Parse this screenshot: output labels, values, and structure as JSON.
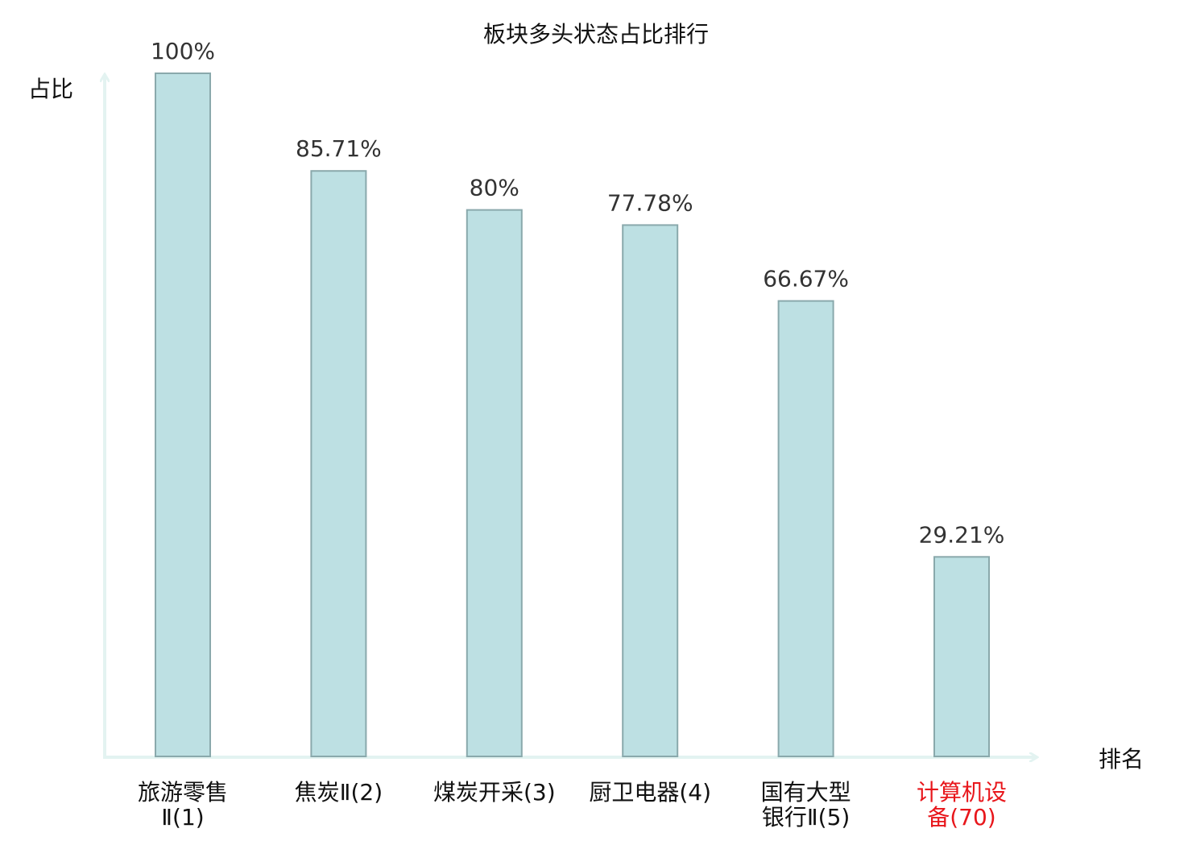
{
  "chart_data": {
    "type": "bar",
    "title": "板块多头状态占比排行",
    "ylabel": "占比",
    "xlabel": "排名",
    "ylim": [
      0,
      100
    ],
    "grid": false,
    "categories": [
      [
        "旅游零售",
        "Ⅱ(1)"
      ],
      [
        "焦炭Ⅱ(2)"
      ],
      [
        "煤炭开采(3)"
      ],
      [
        "厨卫电器(4)"
      ],
      [
        "国有大型",
        "银行Ⅱ(5)"
      ],
      [
        "计算机设",
        "备(70)"
      ]
    ],
    "values": [
      100,
      85.71,
      80,
      77.78,
      66.67,
      29.21
    ],
    "value_labels": [
      "100%",
      "85.71%",
      "80%",
      "77.78%",
      "66.67%",
      "29.21%"
    ],
    "highlight_index": 5,
    "colors": {
      "bar_fill": "#bde0e3",
      "bar_stroke": "#8aa9ac",
      "axis": "#e3f3f1",
      "text": "#333333",
      "label": "#111111",
      "highlight": "#e8161b"
    }
  }
}
